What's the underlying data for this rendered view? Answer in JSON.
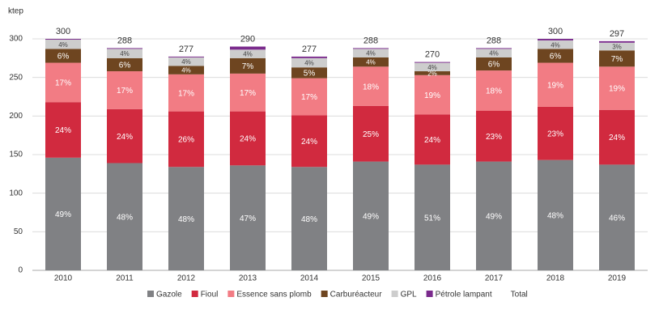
{
  "chart_data": {
    "type": "stacked-bar",
    "ylabel": "ktep",
    "categories": [
      "2010",
      "2011",
      "2012",
      "2013",
      "2014",
      "2015",
      "2016",
      "2017",
      "2018",
      "2019"
    ],
    "series": [
      {
        "name": "Gazole",
        "color": "#808184",
        "values": [
          146,
          139,
          134,
          136,
          134,
          141,
          137,
          141,
          143,
          137
        ],
        "value_labels": [
          "49%",
          "48%",
          "48%",
          "47%",
          "48%",
          "49%",
          "51%",
          "49%",
          "48%",
          "46%"
        ]
      },
      {
        "name": "Fioul",
        "color": "#d12a3f",
        "values": [
          72,
          70,
          72,
          70,
          67,
          72,
          65,
          66,
          69,
          71
        ],
        "value_labels": [
          "24%",
          "24%",
          "26%",
          "24%",
          "24%",
          "25%",
          "24%",
          "23%",
          "23%",
          "24%"
        ]
      },
      {
        "name": "Essence sans plomb",
        "color": "#f27c84",
        "values": [
          51,
          49,
          48,
          49,
          48,
          51,
          51,
          52,
          57,
          56
        ],
        "value_labels": [
          "17%",
          "17%",
          "17%",
          "17%",
          "17%",
          "18%",
          "19%",
          "18%",
          "19%",
          "19%"
        ]
      },
      {
        "name": "Carburéacteur",
        "color": "#6e4520",
        "values": [
          18,
          17,
          11,
          20,
          14,
          12,
          5,
          17,
          18,
          21
        ],
        "value_labels": [
          "6%",
          "6%",
          "4%",
          "7%",
          "5%",
          "4%",
          "2%",
          "6%",
          "6%",
          "7%"
        ]
      },
      {
        "name": "GPL",
        "color": "#cdcdcd",
        "values": [
          12,
          12,
          11,
          11,
          12,
          11,
          11,
          11,
          11,
          10
        ],
        "value_labels": [
          "4%",
          "4%",
          "4%",
          "4%",
          "4%",
          "4%",
          "4%",
          "4%",
          "4%",
          "3%"
        ]
      },
      {
        "name": "Pétrole lampant",
        "color": "#7a2a8c",
        "values": [
          1,
          1,
          1,
          4,
          2,
          1,
          1,
          1,
          2,
          2
        ]
      }
    ],
    "total": {
      "name": "Total",
      "values": [
        300,
        288,
        277,
        290,
        277,
        288,
        270,
        288,
        300,
        297
      ]
    },
    "ylim": [
      0,
      300
    ],
    "yticks": [
      0,
      50,
      100,
      150,
      200,
      250,
      300
    ],
    "grid": true
  }
}
